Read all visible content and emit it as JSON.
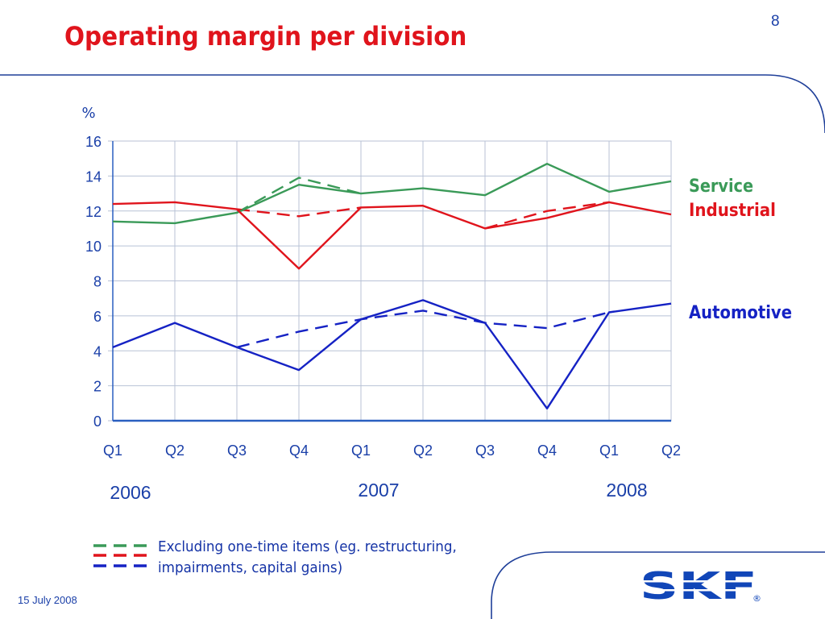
{
  "page": {
    "title": "Operating margin per division",
    "page_number": "8",
    "date": "15 July 2008"
  },
  "colors": {
    "title": "#e0141c",
    "service": "#3a9a58",
    "industrial": "#e0141c",
    "automotive": "#1522c4",
    "text": "#1a3fa8",
    "grid": "#b8c2d6"
  },
  "legend_note": "Excluding one-time items (eg. restructuring, impairments, capital gains)",
  "logo": {
    "text": "SKF",
    "registered": "®"
  },
  "chart_data": {
    "type": "line",
    "ylabel": "%",
    "ylim": [
      0,
      16
    ],
    "yticks": [
      0,
      2,
      4,
      6,
      8,
      10,
      12,
      14,
      16
    ],
    "categories": [
      "Q1",
      "Q2",
      "Q3",
      "Q4",
      "Q1",
      "Q2",
      "Q3",
      "Q4",
      "Q1",
      "Q2"
    ],
    "year_labels": [
      {
        "label": "2006",
        "category_index": 0
      },
      {
        "label": "2007",
        "category_index": 4
      },
      {
        "label": "2008",
        "category_index": 8
      }
    ],
    "grid": true,
    "series": [
      {
        "name": "Service",
        "division": "service",
        "style": "solid",
        "values": [
          11.4,
          11.3,
          11.9,
          13.5,
          13.0,
          13.3,
          12.9,
          14.7,
          13.1,
          13.7
        ]
      },
      {
        "name": "Service",
        "division": "service",
        "style": "dashed",
        "values": [
          null,
          null,
          11.9,
          13.9,
          13.0,
          null,
          null,
          null,
          null,
          null
        ]
      },
      {
        "name": "Industrial",
        "division": "industrial",
        "style": "solid",
        "values": [
          12.4,
          12.5,
          12.1,
          8.7,
          12.2,
          12.3,
          11.0,
          11.6,
          12.5,
          11.8
        ]
      },
      {
        "name": "Industrial",
        "division": "industrial",
        "style": "dashed",
        "values": [
          null,
          null,
          12.1,
          11.7,
          12.2,
          null,
          11.0,
          12.0,
          12.5,
          null
        ]
      },
      {
        "name": "Automotive",
        "division": "automotive",
        "style": "solid",
        "values": [
          4.2,
          5.6,
          4.2,
          2.9,
          5.8,
          6.9,
          5.6,
          0.7,
          6.2,
          6.7
        ]
      },
      {
        "name": "Automotive",
        "division": "automotive",
        "style": "dashed",
        "values": [
          null,
          null,
          4.2,
          5.1,
          5.8,
          6.3,
          5.6,
          5.3,
          6.2,
          null
        ]
      }
    ],
    "labels": [
      {
        "text": "Service",
        "division": "service",
        "anchor_value": 13.7
      },
      {
        "text": "Industrial",
        "division": "industrial",
        "anchor_value": 12.1
      },
      {
        "text": "Automotive",
        "division": "automotive",
        "anchor_value": 6.1
      }
    ]
  }
}
